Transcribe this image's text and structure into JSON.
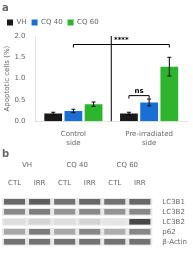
{
  "chart_data": [
    {
      "type": "bar",
      "title": "a",
      "categories": [
        "Control\nside",
        "Pre-irradiated\nside"
      ],
      "series": [
        {
          "name": "VH",
          "color": "#1a1a1a",
          "values": [
            0.18,
            0.18
          ],
          "errors": [
            0.03,
            0.03
          ]
        },
        {
          "name": "CQ 40",
          "color": "#1a6fd4",
          "values": [
            0.24,
            0.44
          ],
          "errors": [
            0.04,
            0.08
          ]
        },
        {
          "name": "CQ 60",
          "color": "#2db52d",
          "values": [
            0.4,
            1.28
          ],
          "errors": [
            0.05,
            0.22
          ]
        }
      ],
      "ylabel": "Apoptotic cells (%)",
      "ylim": [
        0.0,
        2.0
      ],
      "yticks": [
        {
          "value": 0,
          "label": "0.0"
        },
        0.5,
        {
          "value": 1,
          "label": "1.0"
        },
        1.5,
        {
          "value": 2,
          "label": "2.0"
        }
      ],
      "grid": false,
      "legend": "upper left",
      "annotations": [
        {
          "text": "ns",
          "y": 0.6,
          "from": [
            "Pre-irradiated\nside",
            "VH"
          ],
          "to": [
            "Pre-irradiated\nside",
            "CQ 40"
          ]
        },
        {
          "text": "****",
          "y": 1.8,
          "from": [
            "Control\nside",
            "CQ 40"
          ],
          "to": [
            "Pre-irradiated\nside",
            "CQ 60"
          ]
        }
      ]
    },
    {
      "type": "heatmap",
      "title": "b",
      "groups": [
        "VH",
        "CQ 40",
        "CQ 60"
      ],
      "categories": [
        "CTL",
        "IRR",
        "CTL",
        "IRR",
        "CTL",
        "IRR"
      ],
      "rows": [
        "LC3B1",
        "LC3B2",
        "LC3B2",
        "p62",
        "β-Actin"
      ],
      "values": [
        [
          0.7,
          0.75,
          0.65,
          0.7,
          0.65,
          0.7
        ],
        [
          0.55,
          0.6,
          0.5,
          0.55,
          0.5,
          0.55
        ],
        [
          0.15,
          0.2,
          0.15,
          0.2,
          0.12,
          0.85
        ],
        [
          0.4,
          0.6,
          0.4,
          0.55,
          0.38,
          0.55
        ],
        [
          0.65,
          0.65,
          0.65,
          0.65,
          0.65,
          0.65
        ]
      ],
      "grid": false
    }
  ]
}
